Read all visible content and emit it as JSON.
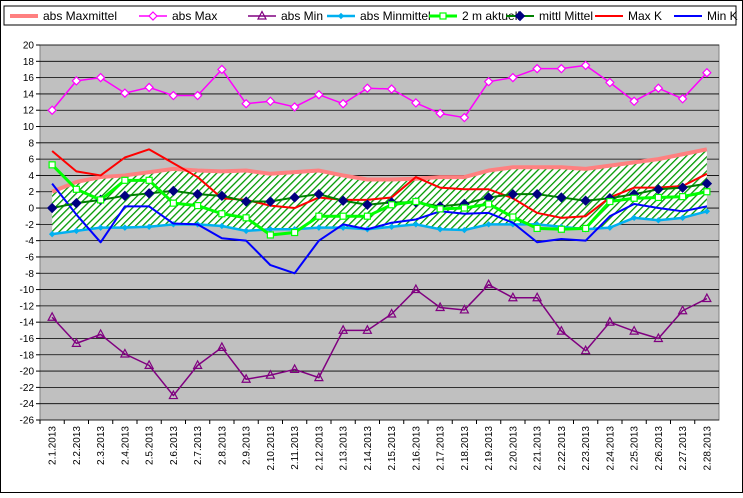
{
  "chart_data": {
    "type": "line",
    "title": "",
    "xlabel": "",
    "ylabel": "",
    "ylim": [
      -26,
      20
    ],
    "y_ticks": [
      20,
      18,
      16,
      14,
      12,
      10,
      8,
      6,
      4,
      2,
      0,
      -2,
      -4,
      -6,
      -8,
      -10,
      -12,
      -14,
      -16,
      -18,
      -20,
      -22,
      -24,
      -26
    ],
    "grid": "horizontal",
    "legend_position": "top",
    "plot_background": "#c0c0c0",
    "categories": [
      "2.1.2013",
      "2.2.2013",
      "2.3.2013",
      "2.4.2013",
      "2.5.2013",
      "2.6.2013",
      "2.7.2013",
      "2.8.2013",
      "2.9.2013",
      "2.10.2013",
      "2.11.2013",
      "2.12.2013",
      "2.13.2013",
      "2.14.2013",
      "2.15.2013",
      "2.16.2013",
      "2.17.2013",
      "2.18.2013",
      "2.19.2013",
      "2.20.2013",
      "2.21.2013",
      "2.22.2013",
      "2.23.2013",
      "2.24.2013",
      "2.25.2013",
      "2.26.2013",
      "2.27.2013",
      "2.28.2013"
    ],
    "band": {
      "description_upper": "abs Maxmittel",
      "description_lower": "abs Minmittel",
      "fill": "hatched-green"
    },
    "series": [
      {
        "name": "abs Maxmittel",
        "color": "#ff8080",
        "marker": "none",
        "width": 4,
        "values": [
          2.0,
          3.2,
          3.8,
          4.0,
          4.4,
          4.8,
          4.6,
          4.5,
          4.6,
          4.2,
          4.4,
          4.6,
          4.0,
          3.5,
          3.5,
          3.6,
          3.8,
          3.8,
          4.6,
          5.0,
          5.0,
          5.0,
          4.8,
          5.2,
          5.6,
          6.0,
          6.6,
          7.2
        ]
      },
      {
        "name": "abs Max",
        "color": "#ff00ff",
        "marker": "diamond-open",
        "values": [
          12.0,
          15.6,
          16.0,
          14.1,
          14.8,
          13.8,
          13.8,
          17.0,
          12.8,
          13.1,
          12.4,
          13.9,
          12.8,
          14.7,
          14.6,
          12.9,
          11.6,
          11.1,
          15.5,
          16.0,
          17.1,
          17.1,
          17.5,
          15.4,
          13.1,
          14.7,
          13.4,
          16.6
        ]
      },
      {
        "name": "abs Min",
        "color": "#800080",
        "marker": "triangle-open",
        "values": [
          -13.4,
          -16.6,
          -15.5,
          -17.9,
          -19.3,
          -23.0,
          -19.3,
          -17.1,
          -21.0,
          -20.5,
          -19.8,
          -20.8,
          -15.0,
          -15.0,
          -13.0,
          -10.0,
          -12.2,
          -12.5,
          -9.4,
          -11.0,
          -11.0,
          -15.1,
          -17.5,
          -14.0,
          -15.1,
          -16.0,
          -12.6,
          -11.1
        ]
      },
      {
        "name": "abs Minmittel",
        "color": "#00b0f0",
        "marker": "diamond-small",
        "width": 2.5,
        "values": [
          -3.2,
          -2.8,
          -2.4,
          -2.4,
          -2.3,
          -2.0,
          -2.0,
          -2.2,
          -2.8,
          -2.6,
          -2.6,
          -2.4,
          -2.4,
          -2.6,
          -2.3,
          -2.0,
          -2.6,
          -2.7,
          -2.0,
          -2.0,
          -2.0,
          -2.3,
          -2.6,
          -2.4,
          -1.2,
          -1.5,
          -1.2,
          -0.4
        ]
      },
      {
        "name": "2 m aktuell",
        "color": "#00ff00",
        "marker": "square-open",
        "width": 3,
        "values": [
          5.3,
          2.3,
          1.0,
          3.4,
          3.4,
          0.6,
          0.3,
          -0.7,
          -1.2,
          -3.3,
          -3.0,
          -1.0,
          -1.0,
          -1.0,
          0.4,
          0.8,
          -0.1,
          0.0,
          0.5,
          -1.1,
          -2.5,
          -2.6,
          -2.5,
          0.8,
          1.2,
          1.3,
          1.4,
          2.0
        ]
      },
      {
        "name": "mittl Mittel",
        "color": "#008000",
        "marker": "diamond-filled-navy",
        "width": 2,
        "values": [
          0.0,
          0.6,
          1.0,
          1.5,
          1.8,
          2.1,
          1.7,
          1.5,
          0.8,
          0.8,
          1.3,
          1.7,
          0.9,
          0.4,
          0.7,
          0.7,
          0.2,
          0.5,
          1.3,
          1.7,
          1.7,
          1.3,
          0.9,
          1.2,
          1.7,
          2.3,
          2.5,
          3.0
        ]
      },
      {
        "name": "Max K",
        "color": "#ff0000",
        "marker": "none",
        "width": 2,
        "values": [
          7.0,
          4.5,
          4.0,
          6.2,
          7.2,
          5.5,
          3.8,
          1.2,
          1.0,
          0.3,
          0.0,
          1.3,
          1.0,
          1.0,
          1.3,
          3.8,
          2.5,
          2.3,
          2.3,
          1.2,
          -0.6,
          -1.2,
          -1.0,
          1.3,
          2.5,
          2.5,
          2.7,
          4.2
        ]
      },
      {
        "name": "Min K",
        "color": "#0000ff",
        "marker": "none",
        "width": 2,
        "values": [
          3.0,
          -0.8,
          -4.2,
          0.2,
          0.2,
          -1.9,
          -2.0,
          -3.7,
          -4.0,
          -7.0,
          -8.0,
          -4.0,
          -2.0,
          -2.6,
          -1.8,
          -1.4,
          -0.4,
          -0.7,
          -0.6,
          -1.8,
          -4.2,
          -3.8,
          -4.0,
          -1.0,
          0.5,
          0.0,
          -0.4,
          0.2
        ]
      }
    ]
  }
}
